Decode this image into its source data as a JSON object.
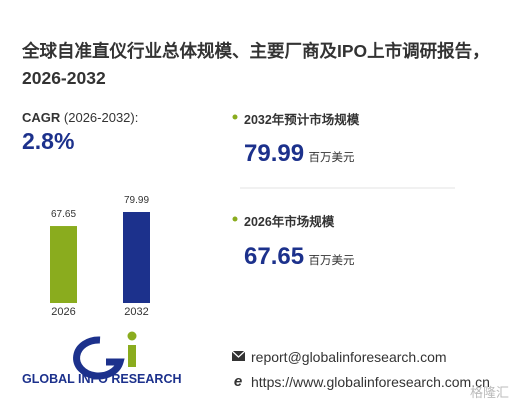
{
  "title": "全球自准直仪行业总体规模、主要厂商及IPO上市调研报告，2026-2032",
  "cagr": {
    "label": "CAGR",
    "period": "(2026-2032):",
    "value": "2.8%"
  },
  "chart_data": {
    "type": "bar",
    "categories": [
      "2026",
      "2032"
    ],
    "values": [
      67.65,
      79.99
    ],
    "colors": [
      "#8aac1e",
      "#1c318c"
    ]
  },
  "stats": [
    {
      "label": "2032年预计市场规模",
      "unit": "百万美元"
    },
    {
      "label": "2026年市场规模",
      "unit": "百万美元"
    }
  ],
  "footer": {
    "brand": "GLOBAL INFO RESEARCH",
    "email": "report@globalinforesearch.com",
    "website": "https://www.globalinforesearch.com.cn",
    "watermark": "格隆汇"
  }
}
